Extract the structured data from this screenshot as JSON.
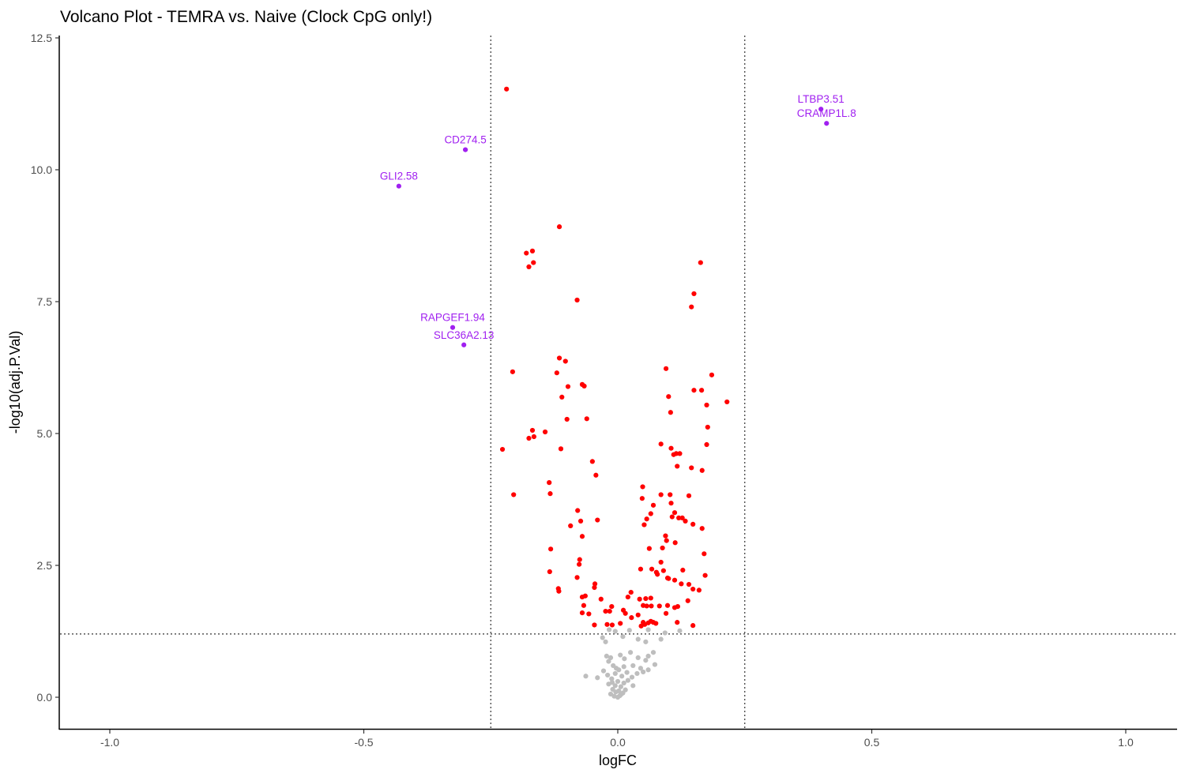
{
  "chart_data": {
    "type": "scatter",
    "title": "Volcano Plot - TEMRA vs. Naive (Clock CpG only!)",
    "xlabel": "logFC",
    "ylabel": "-log10(adj.P.Val)",
    "xlim": [
      -1.1,
      1.1
    ],
    "ylim": [
      -0.6,
      12.55
    ],
    "xticks": [
      -1.0,
      -0.5,
      0.0,
      0.5,
      1.0
    ],
    "xtick_labels": [
      "-1.0",
      "-0.5",
      "0.0",
      "0.5",
      "1.0"
    ],
    "yticks": [
      0,
      2.5,
      5,
      7.5,
      10,
      12.5
    ],
    "ytick_labels": [
      "0.0",
      "2.5",
      "5.0",
      "7.5",
      "10.0",
      "12.5"
    ],
    "grid": false,
    "thresholds": {
      "logfc": [
        -0.25,
        0.25
      ],
      "neglog10p": 1.2
    },
    "colors": {
      "significant": "#ff0000",
      "nonsignificant": "#bebebe",
      "highlight": "#a020f0",
      "threshold_line": "#333333"
    },
    "highlighted": [
      {
        "label": "LTBP3.51",
        "x": 0.4,
        "y": 11.15
      },
      {
        "label": "CRAMP1L.8",
        "x": 0.411,
        "y": 10.88
      },
      {
        "label": "CD274.5",
        "x": -0.3,
        "y": 10.38
      },
      {
        "label": "GLI2.58",
        "x": -0.431,
        "y": 9.69
      },
      {
        "label": "RAPGEF1.94",
        "x": -0.325,
        "y": 7.01
      },
      {
        "label": "SLC36A2.13",
        "x": -0.303,
        "y": 6.68
      }
    ],
    "significant_points": [
      [
        -0.219,
        11.53
      ],
      [
        -0.115,
        8.92
      ],
      [
        -0.18,
        8.42
      ],
      [
        -0.168,
        8.46
      ],
      [
        -0.175,
        8.16
      ],
      [
        -0.166,
        8.24
      ],
      [
        -0.08,
        7.53
      ],
      [
        0.163,
        8.24
      ],
      [
        0.15,
        7.65
      ],
      [
        0.145,
        7.4
      ],
      [
        -0.115,
        6.43
      ],
      [
        -0.103,
        6.37
      ],
      [
        -0.12,
        6.15
      ],
      [
        -0.207,
        6.17
      ],
      [
        0.095,
        6.23
      ],
      [
        0.185,
        6.11
      ],
      [
        -0.07,
        5.93
      ],
      [
        -0.066,
        5.9
      ],
      [
        -0.098,
        5.89
      ],
      [
        -0.11,
        5.69
      ],
      [
        -0.061,
        5.28
      ],
      [
        -0.1,
        5.27
      ],
      [
        0.1,
        5.7
      ],
      [
        0.15,
        5.82
      ],
      [
        0.165,
        5.82
      ],
      [
        0.175,
        5.54
      ],
      [
        0.215,
        5.6
      ],
      [
        0.104,
        5.4
      ],
      [
        -0.227,
        4.7
      ],
      [
        -0.168,
        5.06
      ],
      [
        -0.143,
        5.03
      ],
      [
        -0.175,
        4.91
      ],
      [
        -0.165,
        4.94
      ],
      [
        -0.112,
        4.71
      ],
      [
        0.177,
        5.12
      ],
      [
        0.085,
        4.8
      ],
      [
        0.105,
        4.72
      ],
      [
        0.115,
        4.62
      ],
      [
        0.122,
        4.62
      ],
      [
        0.11,
        4.6
      ],
      [
        0.175,
        4.79
      ],
      [
        0.117,
        4.38
      ],
      [
        0.145,
        4.35
      ],
      [
        0.166,
        4.3
      ],
      [
        -0.05,
        4.47
      ],
      [
        -0.043,
        4.21
      ],
      [
        -0.135,
        4.07
      ],
      [
        -0.133,
        3.86
      ],
      [
        -0.205,
        3.84
      ],
      [
        0.049,
        3.99
      ],
      [
        0.085,
        3.84
      ],
      [
        0.103,
        3.84
      ],
      [
        0.14,
        3.82
      ],
      [
        0.048,
        3.77
      ],
      [
        0.07,
        3.64
      ],
      [
        0.105,
        3.68
      ],
      [
        0.065,
        3.48
      ],
      [
        0.112,
        3.5
      ],
      [
        0.12,
        3.4
      ],
      [
        0.127,
        3.4
      ],
      [
        0.133,
        3.34
      ],
      [
        0.148,
        3.28
      ],
      [
        0.166,
        3.2
      ],
      [
        0.107,
        3.42
      ],
      [
        -0.079,
        3.54
      ],
      [
        -0.073,
        3.34
      ],
      [
        -0.093,
        3.25
      ],
      [
        -0.04,
        3.36
      ],
      [
        0.057,
        3.38
      ],
      [
        0.052,
        3.27
      ],
      [
        -0.07,
        3.05
      ],
      [
        -0.132,
        2.81
      ],
      [
        0.062,
        2.82
      ],
      [
        0.088,
        2.83
      ],
      [
        0.094,
        3.06
      ],
      [
        0.096,
        2.97
      ],
      [
        0.113,
        2.93
      ],
      [
        0.17,
        2.72
      ],
      [
        -0.075,
        2.61
      ],
      [
        -0.076,
        2.52
      ],
      [
        0.085,
        2.56
      ],
      [
        0.067,
        2.43
      ],
      [
        0.076,
        2.37
      ],
      [
        0.078,
        2.33
      ],
      [
        0.09,
        2.4
      ],
      [
        0.098,
        2.26
      ],
      [
        0.112,
        2.22
      ],
      [
        0.128,
        2.41
      ],
      [
        0.045,
        2.43
      ],
      [
        0.172,
        2.31
      ],
      [
        -0.134,
        2.38
      ],
      [
        -0.08,
        2.27
      ],
      [
        -0.117,
        2.06
      ],
      [
        -0.116,
        2.01
      ],
      [
        -0.045,
        2.15
      ],
      [
        -0.046,
        2.08
      ],
      [
        0.1,
        2.25
      ],
      [
        0.125,
        2.15
      ],
      [
        0.14,
        2.14
      ],
      [
        0.148,
        2.05
      ],
      [
        0.16,
        2.03
      ],
      [
        -0.064,
        1.92
      ],
      [
        -0.07,
        1.9
      ],
      [
        -0.033,
        1.86
      ],
      [
        -0.067,
        1.74
      ],
      [
        0.026,
        1.99
      ],
      [
        0.02,
        1.9
      ],
      [
        0.043,
        1.86
      ],
      [
        0.055,
        1.87
      ],
      [
        0.065,
        1.88
      ],
      [
        0.05,
        1.74
      ],
      [
        0.057,
        1.73
      ],
      [
        0.066,
        1.73
      ],
      [
        0.082,
        1.73
      ],
      [
        0.098,
        1.74
      ],
      [
        0.112,
        1.7
      ],
      [
        0.118,
        1.72
      ],
      [
        0.138,
        1.83
      ],
      [
        -0.07,
        1.6
      ],
      [
        -0.057,
        1.58
      ],
      [
        -0.024,
        1.63
      ],
      [
        -0.016,
        1.63
      ],
      [
        -0.012,
        1.72
      ],
      [
        0.011,
        1.65
      ],
      [
        0.015,
        1.59
      ],
      [
        0.027,
        1.51
      ],
      [
        0.04,
        1.56
      ],
      [
        0.05,
        1.42
      ],
      [
        0.06,
        1.41
      ],
      [
        0.065,
        1.44
      ],
      [
        0.075,
        1.4
      ],
      [
        0.095,
        1.59
      ],
      [
        -0.046,
        1.37
      ],
      [
        -0.021,
        1.38
      ],
      [
        -0.011,
        1.37
      ],
      [
        0.005,
        1.4
      ],
      [
        0.046,
        1.35
      ],
      [
        0.053,
        1.38
      ],
      [
        0.07,
        1.42
      ],
      [
        0.117,
        1.42
      ],
      [
        0.148,
        1.36
      ]
    ],
    "nonsignificant_points": [
      [
        -0.017,
        1.28
      ],
      [
        -0.005,
        1.25
      ],
      [
        0.023,
        1.27
      ],
      [
        0.06,
        1.28
      ],
      [
        0.093,
        1.22
      ],
      [
        0.122,
        1.26
      ],
      [
        -0.03,
        1.13
      ],
      [
        -0.024,
        1.05
      ],
      [
        0.01,
        1.15
      ],
      [
        0.04,
        1.1
      ],
      [
        0.055,
        1.05
      ],
      [
        0.085,
        1.1
      ],
      [
        -0.022,
        0.78
      ],
      [
        -0.014,
        0.75
      ],
      [
        -0.018,
        0.68
      ],
      [
        0.005,
        0.8
      ],
      [
        0.013,
        0.73
      ],
      [
        0.025,
        0.85
      ],
      [
        0.04,
        0.75
      ],
      [
        0.055,
        0.7
      ],
      [
        0.06,
        0.78
      ],
      [
        0.07,
        0.85
      ],
      [
        -0.009,
        0.6
      ],
      [
        -0.003,
        0.55
      ],
      [
        0.002,
        0.52
      ],
      [
        0.012,
        0.58
      ],
      [
        0.03,
        0.6
      ],
      [
        0.045,
        0.55
      ],
      [
        0.06,
        0.52
      ],
      [
        0.073,
        0.62
      ],
      [
        -0.063,
        0.4
      ],
      [
        -0.04,
        0.37
      ],
      [
        -0.028,
        0.5
      ],
      [
        -0.02,
        0.42
      ],
      [
        -0.012,
        0.35
      ],
      [
        -0.005,
        0.45
      ],
      [
        0.008,
        0.4
      ],
      [
        0.018,
        0.47
      ],
      [
        0.028,
        0.38
      ],
      [
        0.038,
        0.45
      ],
      [
        0.05,
        0.48
      ],
      [
        -0.018,
        0.25
      ],
      [
        -0.011,
        0.28
      ],
      [
        -0.005,
        0.22
      ],
      [
        0.0,
        0.3
      ],
      [
        0.006,
        0.2
      ],
      [
        0.012,
        0.27
      ],
      [
        0.02,
        0.32
      ],
      [
        0.03,
        0.22
      ],
      [
        -0.01,
        0.15
      ],
      [
        -0.004,
        0.1
      ],
      [
        0.002,
        0.12
      ],
      [
        0.006,
        0.05
      ],
      [
        0.01,
        0.08
      ],
      [
        0.015,
        0.14
      ],
      [
        -0.014,
        0.06
      ],
      [
        -0.007,
        0.02
      ],
      [
        0.0,
        0.0
      ],
      [
        0.004,
        0.03
      ]
    ]
  }
}
